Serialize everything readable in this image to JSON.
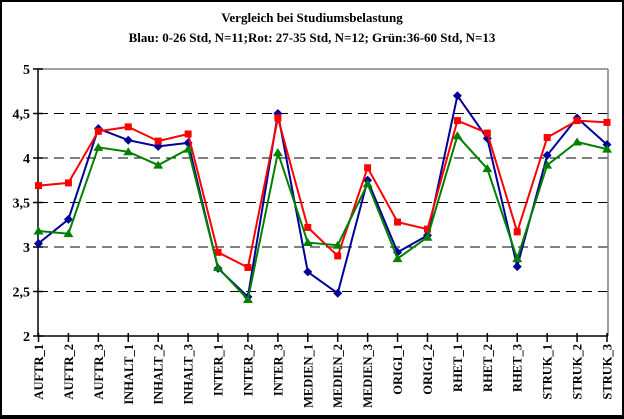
{
  "header": {
    "title": "Vergleich bei Studiumsbelastung",
    "subtitle": "Blau: 0-26 Std, N=11;Rot: 27-35 Std, N=12; Grün:36-60 Std, N=13"
  },
  "chart_data": {
    "type": "line",
    "title": "Vergleich bei Studiumsbelastung",
    "subtitle": "Blau: 0-26 Std, N=11;Rot: 27-35 Std, N=12; Grün:36-60 Std, N=13",
    "categories": [
      "AUFTR_1",
      "AUFTR_2",
      "AUFTR_3",
      "INHALT_1",
      "INHALT_2",
      "INHALT_3",
      "INTER_1",
      "INTER_2",
      "INTER_3",
      "MEDIEN_1",
      "MEDIEN_2",
      "MEDIEN_3",
      "ORIGI_1",
      "ORIGI_2",
      "RHET_1",
      "RHET_2",
      "RHET_3",
      "STRUK_1",
      "STRUK_2",
      "STRUK_3"
    ],
    "series": [
      {
        "name": "Blau: 0-26 Std, N=11",
        "color": "#000099",
        "marker": "diamond",
        "values": [
          3.04,
          3.31,
          4.33,
          4.2,
          4.13,
          4.17,
          2.76,
          2.44,
          4.5,
          2.72,
          2.48,
          3.75,
          2.94,
          3.13,
          4.7,
          4.22,
          2.78,
          4.03,
          4.45,
          4.15
        ]
      },
      {
        "name": "Rot: 27-35 Std, N=12",
        "color": "#FF0000",
        "marker": "square",
        "values": [
          3.69,
          3.72,
          4.3,
          4.35,
          4.19,
          4.27,
          2.94,
          2.77,
          4.45,
          3.22,
          2.9,
          3.89,
          3.28,
          3.2,
          4.42,
          4.28,
          3.17,
          4.23,
          4.42,
          4.4
        ]
      },
      {
        "name": "Grün: 36-60 Std, N=13",
        "color": "#008000",
        "marker": "triangle",
        "values": [
          3.18,
          3.15,
          4.12,
          4.07,
          3.92,
          4.1,
          2.77,
          2.41,
          4.06,
          3.05,
          3.02,
          3.71,
          2.87,
          3.11,
          4.25,
          3.88,
          2.87,
          3.92,
          4.18,
          4.1
        ]
      }
    ],
    "ylim": [
      2,
      5
    ],
    "ytick_step": 0.5,
    "ytick_labels": [
      "2",
      "2,5",
      "3",
      "3,5",
      "4",
      "4,5",
      "5"
    ],
    "xlabel": "",
    "ylabel": "",
    "grid": "horizontal-dashed",
    "legend_position": "none",
    "plot_border_color": "#808080",
    "axis_color": "#000000"
  }
}
